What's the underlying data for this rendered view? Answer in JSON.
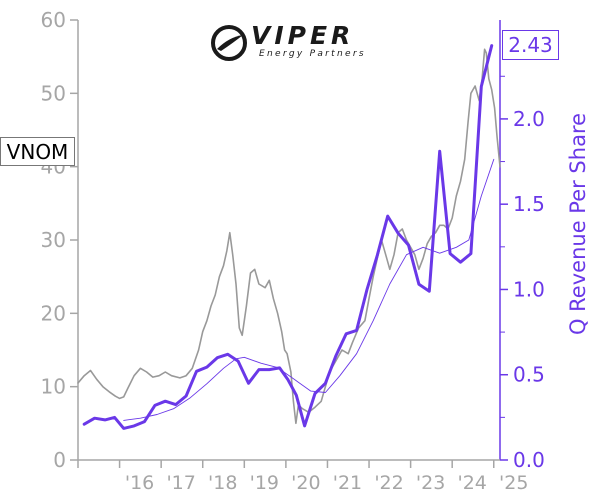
{
  "logo": {
    "name": "VIPER",
    "tagline": "Energy Partners"
  },
  "ticker": "VNOM",
  "latest_value": "2.43",
  "colors": {
    "price": "#999999",
    "revenue": "#6a38e8",
    "left_axis": "#a6a6a6"
  },
  "chart_data": {
    "type": "line",
    "left_axis": {
      "ticks": [
        "0",
        "10",
        "20",
        "30",
        "40",
        "50",
        "60"
      ],
      "range": [
        0,
        60
      ]
    },
    "right_axis": {
      "label": "Q Revenue Per Share",
      "ticks": [
        "0.0",
        "0.5",
        "1.0",
        "1.5",
        "2.0"
      ],
      "range": [
        0,
        2.58
      ]
    },
    "x_axis": {
      "ticks": [
        "'16",
        "'17",
        "'18",
        "'19",
        "'20",
        "'21",
        "'22",
        "'23",
        "'24",
        "'25"
      ],
      "range": [
        2015.0,
        2025.15
      ]
    },
    "series": [
      {
        "axis": "left",
        "style": "price",
        "points": [
          [
            2015.0,
            10.5
          ],
          [
            2015.15,
            11.5
          ],
          [
            2015.3,
            12.2
          ],
          [
            2015.45,
            11.0
          ],
          [
            2015.6,
            10.0
          ],
          [
            2015.75,
            9.3
          ],
          [
            2015.9,
            8.7
          ],
          [
            2016.0,
            8.4
          ],
          [
            2016.1,
            8.6
          ],
          [
            2016.2,
            9.8
          ],
          [
            2016.35,
            11.5
          ],
          [
            2016.5,
            12.5
          ],
          [
            2016.65,
            12.0
          ],
          [
            2016.8,
            11.3
          ],
          [
            2016.95,
            11.5
          ],
          [
            2017.1,
            12.0
          ],
          [
            2017.25,
            11.5
          ],
          [
            2017.45,
            11.2
          ],
          [
            2017.6,
            11.5
          ],
          [
            2017.75,
            12.5
          ],
          [
            2017.9,
            15.0
          ],
          [
            2018.0,
            17.5
          ],
          [
            2018.1,
            19.0
          ],
          [
            2018.2,
            21.0
          ],
          [
            2018.3,
            22.5
          ],
          [
            2018.4,
            25.0
          ],
          [
            2018.5,
            26.5
          ],
          [
            2018.58,
            28.5
          ],
          [
            2018.65,
            31.0
          ],
          [
            2018.72,
            28.0
          ],
          [
            2018.8,
            24.0
          ],
          [
            2018.88,
            18.0
          ],
          [
            2018.95,
            17.0
          ],
          [
            2019.05,
            21.0
          ],
          [
            2019.15,
            25.5
          ],
          [
            2019.25,
            26.0
          ],
          [
            2019.35,
            24.0
          ],
          [
            2019.5,
            23.5
          ],
          [
            2019.6,
            24.5
          ],
          [
            2019.7,
            22.0
          ],
          [
            2019.8,
            20.0
          ],
          [
            2019.9,
            17.5
          ],
          [
            2019.97,
            15.0
          ],
          [
            2020.03,
            14.5
          ],
          [
            2020.12,
            12.0
          ],
          [
            2020.18,
            8.0
          ],
          [
            2020.24,
            5.0
          ],
          [
            2020.3,
            7.5
          ],
          [
            2020.4,
            7.0
          ],
          [
            2020.55,
            6.5
          ],
          [
            2020.7,
            7.2
          ],
          [
            2020.85,
            8.0
          ],
          [
            2020.95,
            10.0
          ],
          [
            2021.05,
            12.0
          ],
          [
            2021.2,
            13.5
          ],
          [
            2021.35,
            15.0
          ],
          [
            2021.5,
            14.5
          ],
          [
            2021.6,
            16.0
          ],
          [
            2021.75,
            18.0
          ],
          [
            2021.9,
            19.0
          ],
          [
            2022.0,
            22.0
          ],
          [
            2022.1,
            25.0
          ],
          [
            2022.2,
            27.5
          ],
          [
            2022.3,
            30.0
          ],
          [
            2022.4,
            28.0
          ],
          [
            2022.5,
            26.0
          ],
          [
            2022.6,
            28.0
          ],
          [
            2022.7,
            31.0
          ],
          [
            2022.8,
            31.5
          ],
          [
            2022.9,
            30.0
          ],
          [
            2023.0,
            29.0
          ],
          [
            2023.1,
            28.0
          ],
          [
            2023.2,
            26.0
          ],
          [
            2023.3,
            27.5
          ],
          [
            2023.4,
            29.5
          ],
          [
            2023.5,
            30.5
          ],
          [
            2023.6,
            31.0
          ],
          [
            2023.7,
            32.0
          ],
          [
            2023.8,
            32.0
          ],
          [
            2023.9,
            31.5
          ],
          [
            2024.0,
            33.0
          ],
          [
            2024.1,
            36.0
          ],
          [
            2024.2,
            38.0
          ],
          [
            2024.3,
            41.0
          ],
          [
            2024.38,
            46.0
          ],
          [
            2024.45,
            50.0
          ],
          [
            2024.55,
            51.0
          ],
          [
            2024.65,
            49.0
          ],
          [
            2024.72,
            52.0
          ],
          [
            2024.78,
            56.0
          ],
          [
            2024.82,
            55.5
          ],
          [
            2024.88,
            52.0
          ],
          [
            2024.95,
            50.5
          ],
          [
            2025.02,
            48.0
          ],
          [
            2025.08,
            44.0
          ],
          [
            2025.15,
            40.0
          ]
        ]
      },
      {
        "axis": "left",
        "style": "price-trend",
        "points": [
          [
            2016.1,
            5.4
          ],
          [
            2016.5,
            5.7
          ],
          [
            2016.9,
            6.2
          ],
          [
            2017.3,
            7.0
          ],
          [
            2017.7,
            8.5
          ],
          [
            2018.1,
            10.4
          ],
          [
            2018.5,
            12.5
          ],
          [
            2018.8,
            13.8
          ],
          [
            2019.0,
            14.0
          ],
          [
            2019.4,
            13.2
          ],
          [
            2019.8,
            12.6
          ],
          [
            2020.2,
            11.0
          ],
          [
            2020.6,
            9.4
          ],
          [
            2020.95,
            9.2
          ],
          [
            2021.3,
            11.5
          ],
          [
            2021.7,
            14.5
          ],
          [
            2022.1,
            19.0
          ],
          [
            2022.5,
            24.0
          ],
          [
            2022.9,
            28.0
          ],
          [
            2023.3,
            29.0
          ],
          [
            2023.7,
            28.2
          ],
          [
            2024.1,
            29.0
          ],
          [
            2024.4,
            30.0
          ],
          [
            2024.7,
            36.0
          ],
          [
            2025.0,
            41.0
          ]
        ]
      },
      {
        "axis": "right",
        "style": "revenue",
        "name": "Q Revenue Per Share",
        "points": [
          [
            2015.15,
            0.21
          ],
          [
            2015.4,
            0.245
          ],
          [
            2015.65,
            0.235
          ],
          [
            2015.88,
            0.25
          ],
          [
            2016.1,
            0.185
          ],
          [
            2016.35,
            0.2
          ],
          [
            2016.6,
            0.225
          ],
          [
            2016.85,
            0.32
          ],
          [
            2017.1,
            0.345
          ],
          [
            2017.35,
            0.325
          ],
          [
            2017.6,
            0.375
          ],
          [
            2017.85,
            0.52
          ],
          [
            2018.1,
            0.545
          ],
          [
            2018.35,
            0.6
          ],
          [
            2018.6,
            0.62
          ],
          [
            2018.85,
            0.58
          ],
          [
            2019.1,
            0.45
          ],
          [
            2019.35,
            0.53
          ],
          [
            2019.6,
            0.53
          ],
          [
            2019.85,
            0.54
          ],
          [
            2020.05,
            0.47
          ],
          [
            2020.25,
            0.38
          ],
          [
            2020.45,
            0.2
          ],
          [
            2020.7,
            0.39
          ],
          [
            2020.95,
            0.45
          ],
          [
            2021.2,
            0.61
          ],
          [
            2021.45,
            0.74
          ],
          [
            2021.7,
            0.76
          ],
          [
            2021.95,
            1.0
          ],
          [
            2022.2,
            1.2
          ],
          [
            2022.45,
            1.43
          ],
          [
            2022.7,
            1.33
          ],
          [
            2022.95,
            1.26
          ],
          [
            2023.2,
            1.03
          ],
          [
            2023.45,
            0.99
          ],
          [
            2023.7,
            1.81
          ],
          [
            2023.95,
            1.21
          ],
          [
            2024.2,
            1.16
          ],
          [
            2024.45,
            1.21
          ],
          [
            2024.7,
            2.19
          ],
          [
            2024.95,
            2.43
          ]
        ]
      }
    ]
  }
}
